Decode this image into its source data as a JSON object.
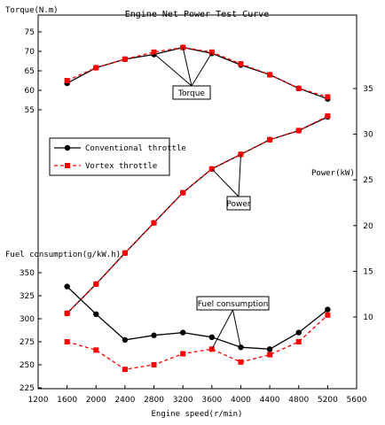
{
  "chart_data": {
    "type": "line",
    "title": "Engine Net Power Test Curve",
    "xlabel": "Engine speed(r/min)",
    "x_ticks": [
      1200,
      1600,
      2000,
      2400,
      2800,
      3200,
      3600,
      4000,
      4400,
      4800,
      5200,
      5600
    ],
    "xlim": [
      1200,
      5600
    ],
    "x": [
      1600,
      2000,
      2400,
      2800,
      3200,
      3600,
      4000,
      4400,
      4800,
      5200
    ],
    "legend": {
      "position": "left-middle",
      "entries": [
        {
          "label": "Conventional throttle",
          "color": "#000000",
          "marker": "circle",
          "dashed": false
        },
        {
          "label": "Vortex throttle",
          "color": "#ff0000",
          "marker": "square",
          "dashed": true
        }
      ]
    },
    "axes": {
      "torque": {
        "label": "Torque(N.m)",
        "ticks": [
          55,
          60,
          65,
          70,
          75
        ]
      },
      "power": {
        "label": "Power(kW)",
        "ticks": [
          10,
          15,
          20,
          25,
          30,
          35
        ]
      },
      "fuel": {
        "label": "Fuel consumption(g/kW.h)",
        "ticks": [
          225,
          250,
          275,
          300,
          325,
          350
        ]
      }
    },
    "groups": [
      {
        "axis": "torque",
        "callout": "Torque",
        "series": [
          {
            "name": "Conventional throttle",
            "values": [
              61.8,
              65.8,
              68.0,
              69.2,
              71.0,
              69.5,
              66.5,
              64.0,
              60.5,
              57.8
            ]
          },
          {
            "name": "Vortex throttle",
            "values": [
              62.5,
              65.8,
              68.0,
              69.8,
              71.0,
              69.8,
              66.8,
              64.0,
              60.5,
              58.3
            ]
          }
        ]
      },
      {
        "axis": "power",
        "callout": "Power",
        "series": [
          {
            "name": "Conventional throttle",
            "values": [
              10.4,
              13.6,
              17.0,
              20.3,
              23.6,
              26.2,
              27.8,
              29.4,
              30.4,
              31.9
            ]
          },
          {
            "name": "Vortex throttle",
            "values": [
              10.4,
              13.6,
              17.0,
              20.3,
              23.6,
              26.2,
              27.8,
              29.4,
              30.4,
              32.0
            ]
          }
        ]
      },
      {
        "axis": "fuel",
        "callout": "Fuel consumption",
        "series": [
          {
            "name": "Conventional throttle",
            "values": [
              335,
              305,
              277,
              282,
              285,
              280,
              269,
              267,
              285,
              310
            ]
          },
          {
            "name": "Vortex throttle",
            "values": [
              275,
              266,
              245,
              250,
              262,
              267,
              253,
              261,
              275,
              304
            ]
          }
        ]
      }
    ]
  }
}
